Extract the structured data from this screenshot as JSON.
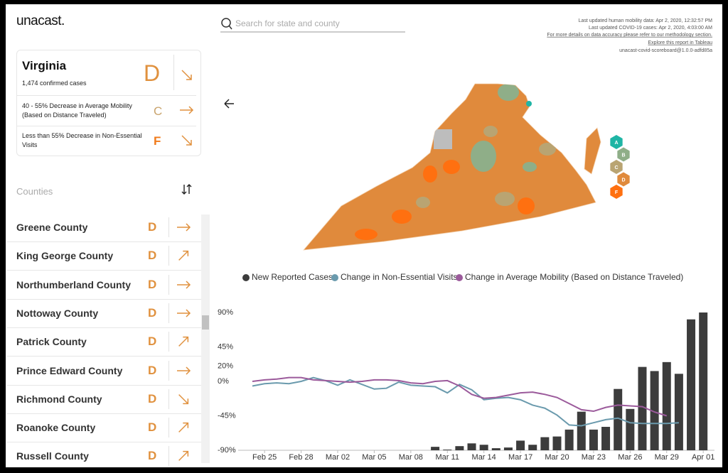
{
  "header": {
    "logo": "unacast.",
    "search_placeholder": "Search for state and county",
    "info": [
      "Last updated human mobility data: Apr 2, 2020, 12:32:57 PM",
      "Last updated COVID-19 cases: Apr 2, 2020, 4:03:00 AM",
      "For more details on data accuracy please refer to our methodology section.",
      "Explore this report in Tableau",
      "unacast-covid-scoreboard@1.0.0-adfd85a"
    ]
  },
  "state": {
    "name": "Virginia",
    "confirmed": "1,474 confirmed cases",
    "grade": "D",
    "metrics": [
      {
        "label": "40 - 55% Decrease in Average Mobility (Based on Distance Traveled)",
        "grade": "C"
      },
      {
        "label": "Less than 55% Decrease in Non-Essential Visits",
        "grade": "F"
      }
    ]
  },
  "counties": {
    "title": "Counties",
    "rows": [
      {
        "name": "Greene County",
        "grade": "D"
      },
      {
        "name": "King George County",
        "grade": "D"
      },
      {
        "name": "Northumberland County",
        "grade": "D"
      },
      {
        "name": "Nottoway County",
        "grade": "D"
      },
      {
        "name": "Patrick County",
        "grade": "D"
      },
      {
        "name": "Prince Edward County",
        "grade": "D"
      },
      {
        "name": "Richmond County",
        "grade": "D"
      },
      {
        "name": "Roanoke County",
        "grade": "D"
      },
      {
        "name": "Russell County",
        "grade": "D"
      }
    ]
  },
  "map_legend": [
    "A",
    "B",
    "C",
    "D",
    "F"
  ],
  "chart_data": {
    "type": "combo",
    "categories": [
      null,
      "Feb 25",
      null,
      null,
      "Feb 28",
      null,
      null,
      "Mar 02",
      null,
      null,
      "Mar 05",
      null,
      null,
      "Mar 08",
      null,
      null,
      "Mar 11",
      null,
      null,
      "Mar 14",
      null,
      null,
      "Mar 17",
      null,
      null,
      "Mar 20",
      null,
      null,
      "Mar 23",
      null,
      null,
      "Mar 26",
      null,
      null,
      "Mar 29",
      null,
      null,
      "Apr 01"
    ],
    "series": [
      {
        "name": "New Reported Cases",
        "color": "#3c3c3c",
        "kind": "bar",
        "axis": "y2",
        "values": [
          null,
          null,
          null,
          null,
          null,
          null,
          null,
          null,
          null,
          null,
          null,
          null,
          null,
          null,
          null,
          5,
          1,
          6,
          10,
          8,
          3,
          4,
          14,
          8,
          19,
          20,
          30,
          56,
          30,
          34,
          89,
          60,
          121,
          115,
          128,
          111,
          190,
          200
        ]
      },
      {
        "name": "Change in Non-Essential Visits",
        "color": "#6a9aad",
        "kind": "line",
        "values": [
          -6,
          -3,
          -2,
          -3,
          0,
          5,
          1,
          -5,
          2,
          -4,
          -10,
          -9,
          -1,
          -5,
          -6,
          -7,
          -15,
          -4,
          -11,
          -24,
          -22,
          -21,
          -24,
          -31,
          -35,
          -44,
          -57,
          -58,
          -54,
          -50,
          -48,
          -54,
          -55,
          -55,
          -55,
          -54,
          null,
          null
        ]
      },
      {
        "name": "Change in Average Mobility (Based on Distance Traveled)",
        "color": "#9b5a9b",
        "kind": "line",
        "values": [
          0,
          2,
          3,
          5,
          5,
          2,
          1,
          0,
          -1,
          0,
          2,
          2,
          1,
          -2,
          -3,
          0,
          1,
          -6,
          -17,
          -22,
          -21,
          -18,
          -15,
          -14,
          -17,
          -21,
          -29,
          -37,
          -39,
          -34,
          -31,
          -32,
          -33,
          -40,
          -45,
          null,
          null,
          null
        ]
      }
    ],
    "ylim": [
      -90,
      90
    ],
    "yticks": [
      {
        "value": -90,
        "label": "-90%"
      },
      {
        "value": -45,
        "label": "-45%"
      },
      {
        "value": 0,
        "label": "0%"
      },
      {
        "value": 20,
        "label": "20%"
      },
      {
        "value": 45,
        "label": "45%"
      },
      {
        "value": 90,
        "label": "90%"
      }
    ],
    "y2lim": [
      0,
      200
    ]
  }
}
